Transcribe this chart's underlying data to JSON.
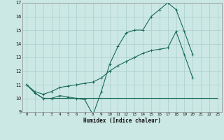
{
  "bg_color": "#cce8e4",
  "grid_color": "#aacfcb",
  "line_color": "#1a6b5a",
  "line1_x": [
    0,
    1,
    2,
    3,
    4,
    5,
    6,
    7,
    8,
    9,
    10,
    11,
    12,
    13,
    14,
    15,
    16,
    17,
    18,
    19,
    20
  ],
  "line1_y": [
    11.0,
    10.4,
    10.0,
    10.0,
    10.2,
    10.1,
    10.0,
    9.9,
    8.8,
    10.5,
    12.5,
    13.8,
    14.8,
    15.0,
    15.0,
    16.0,
    16.5,
    17.0,
    16.5,
    14.9,
    13.2
  ],
  "line2_x": [
    0,
    1,
    2,
    3,
    4,
    5,
    6,
    7,
    8,
    9,
    10,
    11,
    12,
    13,
    14,
    15,
    16,
    17,
    18,
    19,
    20
  ],
  "line2_y": [
    11.0,
    10.5,
    10.3,
    10.5,
    10.8,
    10.9,
    11.0,
    11.1,
    11.2,
    11.5,
    12.0,
    12.4,
    12.7,
    13.0,
    13.3,
    13.5,
    13.6,
    13.7,
    14.9,
    13.2,
    11.5
  ],
  "line3_x": [
    0,
    1,
    2,
    3,
    4,
    5,
    6,
    7,
    8,
    9,
    10,
    11,
    12,
    13,
    14,
    15,
    16,
    17,
    18,
    19,
    20,
    21,
    22,
    23
  ],
  "line3_y": [
    11.0,
    10.4,
    10.0,
    10.0,
    10.0,
    10.0,
    10.0,
    10.0,
    10.0,
    10.0,
    10.0,
    10.0,
    10.0,
    10.0,
    10.0,
    10.0,
    10.0,
    10.0,
    10.0,
    10.0,
    10.0,
    10.0,
    10.0,
    10.0
  ],
  "xlabel": "Humidex (Indice chaleur)",
  "xlim": [
    -0.5,
    23.5
  ],
  "ylim": [
    9,
    17
  ],
  "yticks": [
    9,
    10,
    11,
    12,
    13,
    14,
    15,
    16,
    17
  ],
  "xticks": [
    0,
    1,
    2,
    3,
    4,
    5,
    6,
    7,
    8,
    9,
    10,
    11,
    12,
    13,
    14,
    15,
    16,
    17,
    18,
    19,
    20,
    21,
    22,
    23
  ]
}
